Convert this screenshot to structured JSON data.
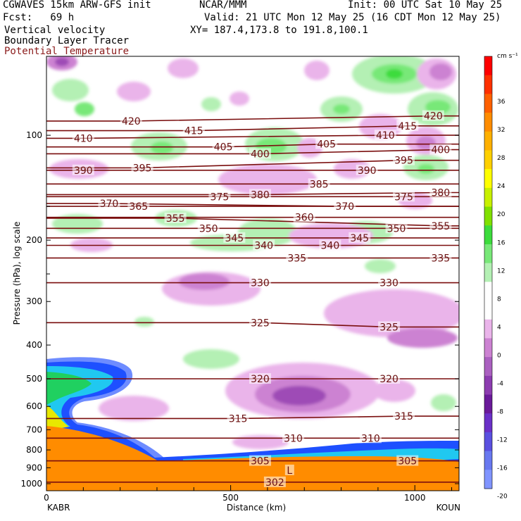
{
  "header": {
    "model": "CGWAVES 15km ARW-GFS init",
    "forecast": "Fcst:   69 h",
    "field1": "Vertical velocity",
    "field2": "Boundary Layer Tracer",
    "field3": "Potential Temperature",
    "org": "NCAR/MMM",
    "init": "Init: 00 UTC Sat 10 May 25",
    "valid": "Valid: 21 UTC Mon 12 May 25 (16 CDT Mon 12 May 25)",
    "xy": "XY= 187.4,173.8 to 191.8,100.1"
  },
  "colors": {
    "theta": "#7a0e0e",
    "tracer_orange": "#ff8c00",
    "tracer_blue": "#1e50ff",
    "tracer_cyan": "#20c8f0",
    "tracer_green": "#20d060",
    "up_light": "#b4f0b4",
    "up_mid": "#78e878",
    "up_strong": "#3cdc3c",
    "down_light": "#eab4ea",
    "down_mid": "#cc82d2",
    "down_strong": "#9e4cb6"
  },
  "chart_data": {
    "type": "heatmap",
    "xlabel": "Distance (km)",
    "ylabel": "Pressure (hPa), log scale",
    "x_start_label": "KABR",
    "x_end_label": "KOUN",
    "xlim": [
      0,
      1120
    ],
    "ylim": [
      1000,
      60
    ],
    "x_ticks": [
      "0",
      "500",
      "1000"
    ],
    "y_ticks": [
      "100",
      "200",
      "300",
      "400",
      "500",
      "600",
      "700",
      "800",
      "900",
      "1000"
    ],
    "colorbar": {
      "units": "cm s⁻¹",
      "labels": [
        "36",
        "32",
        "28",
        "24",
        "20",
        "16",
        "12",
        "8",
        "4",
        "0",
        "-4",
        "-8",
        "-12",
        "-16",
        "-20"
      ],
      "colors": [
        "#ff0000",
        "#ff3000",
        "#ff6000",
        "#ff8c00",
        "#ffb000",
        "#ffd000",
        "#ffff00",
        "#c8f000",
        "#80e000",
        "#3cdc3c",
        "#78e878",
        "#b4f0b4",
        "#ffffff",
        "#ffffff",
        "#eab4ea",
        "#cc82d2",
        "#aa60c0",
        "#8c3cb0",
        "#6a1a9a",
        "#6a30c8",
        "#5a50e0",
        "#6878f0",
        "#8094ff"
      ]
    },
    "isentropes": [
      {
        "label": "302",
        "x": 620,
        "p": 990
      },
      {
        "label": "305",
        "x": 580,
        "p": 860
      },
      {
        "label": "305",
        "x": 980,
        "p": 860
      },
      {
        "label": "310",
        "x": 670,
        "p": 740
      },
      {
        "label": "310",
        "x": 880,
        "p": 740
      },
      {
        "label": "315",
        "x": 520,
        "p": 650
      },
      {
        "label": "315",
        "x": 970,
        "p": 640
      },
      {
        "label": "320",
        "x": 580,
        "p": 500
      },
      {
        "label": "320",
        "x": 930,
        "p": 500
      },
      {
        "label": "325",
        "x": 580,
        "p": 345
      },
      {
        "label": "325",
        "x": 930,
        "p": 355
      },
      {
        "label": "330",
        "x": 580,
        "p": 265
      },
      {
        "label": "330",
        "x": 930,
        "p": 265
      },
      {
        "label": "335",
        "x": 680,
        "p": 225
      },
      {
        "label": "335",
        "x": 1070,
        "p": 225
      },
      {
        "label": "340",
        "x": 590,
        "p": 207
      },
      {
        "label": "340",
        "x": 770,
        "p": 207
      },
      {
        "label": "345",
        "x": 510,
        "p": 197
      },
      {
        "label": "345",
        "x": 850,
        "p": 197
      },
      {
        "label": "350",
        "x": 440,
        "p": 185
      },
      {
        "label": "350",
        "x": 950,
        "p": 185
      },
      {
        "label": "355",
        "x": 350,
        "p": 173
      },
      {
        "label": "355",
        "x": 1070,
        "p": 182
      },
      {
        "label": "360",
        "x": 700,
        "p": 172
      },
      {
        "label": "365",
        "x": 250,
        "p": 160
      },
      {
        "label": "370",
        "x": 170,
        "p": 157
      },
      {
        "label": "370",
        "x": 810,
        "p": 160
      },
      {
        "label": "375",
        "x": 470,
        "p": 150
      },
      {
        "label": "375",
        "x": 970,
        "p": 150
      },
      {
        "label": "380",
        "x": 580,
        "p": 148
      },
      {
        "label": "380",
        "x": 1070,
        "p": 146
      },
      {
        "label": "385",
        "x": 740,
        "p": 138
      },
      {
        "label": "390",
        "x": 100,
        "p": 126
      },
      {
        "label": "390",
        "x": 870,
        "p": 126
      },
      {
        "label": "395",
        "x": 260,
        "p": 124
      },
      {
        "label": "395",
        "x": 970,
        "p": 118
      },
      {
        "label": "400",
        "x": 580,
        "p": 113
      },
      {
        "label": "400",
        "x": 1070,
        "p": 110
      },
      {
        "label": "405",
        "x": 480,
        "p": 108
      },
      {
        "label": "405",
        "x": 760,
        "p": 106
      },
      {
        "label": "410",
        "x": 100,
        "p": 102
      },
      {
        "label": "410",
        "x": 920,
        "p": 100
      },
      {
        "label": "415",
        "x": 400,
        "p": 97
      },
      {
        "label": "415",
        "x": 980,
        "p": 94
      },
      {
        "label": "420",
        "x": 230,
        "p": 91
      },
      {
        "label": "420",
        "x": 1050,
        "p": 88
      },
      {
        "label": "L",
        "x": 660,
        "p": 915
      }
    ],
    "grid": false
  }
}
